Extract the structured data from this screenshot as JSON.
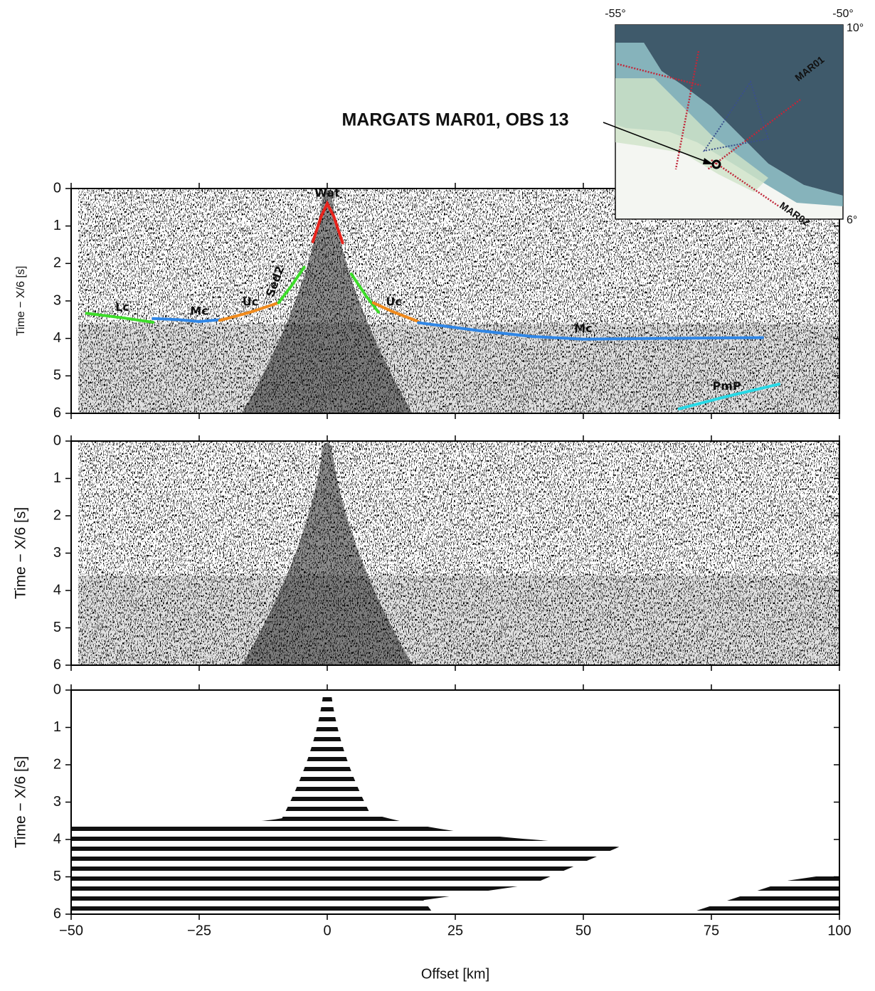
{
  "title": "MARGATS MAR01, OBS 13",
  "map": {
    "lon_labels": [
      "-55°",
      "-50°"
    ],
    "lat_labels": [
      "10°",
      "6°"
    ],
    "line_labels": [
      "MAR01",
      "MAR02"
    ]
  },
  "chart_data": [
    {
      "type": "line",
      "ylabel": "Time − X/6 [s]",
      "xlim": [
        -50,
        100
      ],
      "ylim": [
        0,
        6
      ],
      "y_inverted": true,
      "xticks": [
        -50,
        -25,
        0,
        25,
        50,
        75,
        100
      ],
      "yticks": [
        0,
        1,
        2,
        3,
        4,
        5,
        6
      ],
      "series": [
        {
          "name": "Lc",
          "color": "#3ddc2a",
          "x": [
            -47,
            -40,
            -34
          ],
          "values": [
            3.33,
            3.45,
            3.57
          ]
        },
        {
          "name": "Mc",
          "color": "#2f86e6",
          "x": [
            -34,
            -29,
            -25,
            -21
          ],
          "values": [
            3.47,
            3.5,
            3.55,
            3.5
          ]
        },
        {
          "name": "Uc",
          "color": "#f08a1c",
          "x": [
            -21,
            -15,
            -9.5
          ],
          "values": [
            3.52,
            3.3,
            3.05
          ]
        },
        {
          "name": "Sed2",
          "color": "#3ddc2a",
          "x": [
            -9.5,
            -7,
            -4.5
          ],
          "values": [
            3.05,
            2.6,
            2.1
          ]
        },
        {
          "name": "Wat",
          "color": "#e8231c",
          "x": [
            -2.8,
            -1.2,
            0,
            1.3,
            3
          ],
          "values": [
            1.42,
            0.75,
            0.4,
            0.75,
            1.45
          ]
        },
        {
          "color": "#3ddc2a",
          "x": [
            4.7,
            7.5,
            10
          ],
          "values": [
            2.28,
            2.85,
            3.3
          ]
        },
        {
          "name": "Uc",
          "color": "#f08a1c",
          "x": [
            9,
            13,
            17.8
          ],
          "values": [
            3.05,
            3.3,
            3.55
          ]
        },
        {
          "name": "Mc",
          "color": "#2f86e6",
          "x": [
            17.8,
            30,
            40,
            50,
            65,
            85
          ],
          "values": [
            3.58,
            3.8,
            3.95,
            4.02,
            4.0,
            3.98
          ]
        },
        {
          "name": "PmP",
          "color": "#27d9e6",
          "x": [
            68.7,
            78,
            88.2
          ],
          "values": [
            5.88,
            5.55,
            5.22
          ]
        }
      ]
    },
    {
      "type": "seismogram",
      "ylabel": "Time − X/6 [s]",
      "xlim": [
        -50,
        100
      ],
      "ylim": [
        0,
        6
      ],
      "y_inverted": true,
      "xticks": [
        -50,
        -25,
        0,
        25,
        50,
        75,
        100
      ],
      "yticks": [
        0,
        1,
        2,
        3,
        4,
        5,
        6
      ]
    },
    {
      "type": "synthetic",
      "ylabel": "Time − X/6 [s]",
      "xlabel": "Offset [km]",
      "xlim": [
        -50,
        100
      ],
      "ylim": [
        0,
        6
      ],
      "y_inverted": true,
      "xticks": [
        {
          "value": -50,
          "label": "−50"
        },
        {
          "value": -25,
          "label": "−25"
        },
        0,
        25,
        50,
        75,
        100
      ],
      "yticks": [
        0,
        1,
        2,
        3,
        4,
        5,
        6
      ]
    }
  ]
}
